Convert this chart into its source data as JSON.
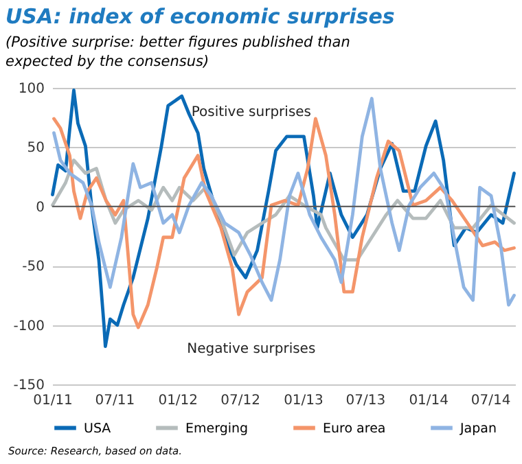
{
  "chart_data": {
    "type": "line",
    "title": "USA: index of economic surprises",
    "subtitle": "(Positive surprise: better figures published than expected by the consensus)",
    "xlim": [
      "2011-01-01",
      "2014-09-12"
    ],
    "xticks": [
      {
        "value": "2011-01-01",
        "label": "01/11"
      },
      {
        "value": "2011-07-01",
        "label": "07/11"
      },
      {
        "value": "2012-01-01",
        "label": "01/12"
      },
      {
        "value": "2012-07-01",
        "label": "07/12"
      },
      {
        "value": "2013-01-01",
        "label": "01/13"
      },
      {
        "value": "2013-07-01",
        "label": "07/13"
      },
      {
        "value": "2014-01-01",
        "label": "01/14"
      },
      {
        "value": "2014-07-01",
        "label": "07/14"
      }
    ],
    "ylim": [
      -150,
      100
    ],
    "yticks": [
      -150,
      -100,
      -50,
      0,
      50,
      100
    ],
    "grid": "y",
    "legend": "bottom",
    "line_style": "solid",
    "ref_lines": [
      {
        "axis": "y",
        "value": 0,
        "color": "#555555"
      }
    ],
    "series": [
      {
        "name": "USA",
        "color": "#0a6ab6",
        "x": [
          "2011-01-02",
          "2011-01-18",
          "2011-02-09",
          "2011-02-21",
          "2011-03-05",
          "2011-03-17",
          "2011-04-08",
          "2011-04-26",
          "2011-05-17",
          "2011-06-01",
          "2011-06-05",
          "2011-06-19",
          "2011-07-10",
          "2011-07-28",
          "2011-08-25",
          "2011-10-07",
          "2011-11-15",
          "2011-12-05",
          "2012-01-14",
          "2012-02-04",
          "2012-03-01",
          "2012-03-18",
          "2012-04-22",
          "2012-05-18",
          "2012-06-21",
          "2012-07-18",
          "2012-08-21",
          "2012-09-23",
          "2012-10-14",
          "2012-11-15",
          "2013-01-04",
          "2013-02-01",
          "2013-02-12",
          "2013-03-21",
          "2013-04-23",
          "2013-05-26",
          "2013-07-07",
          "2013-08-15",
          "2013-09-18",
          "2013-10-21",
          "2013-11-23",
          "2013-12-26",
          "2014-01-23",
          "2014-02-15",
          "2014-03-18",
          "2014-04-21",
          "2014-05-23",
          "2014-07-04",
          "2014-08-07",
          "2014-09-09"
        ],
        "values": [
          10,
          35,
          30,
          65,
          98,
          70,
          51,
          0,
          -45,
          -100,
          -118,
          -95,
          -100,
          -83,
          -60,
          -10,
          50,
          85,
          93,
          78,
          62,
          32,
          -3,
          -26,
          -49,
          -60,
          -37,
          13,
          47,
          59,
          59,
          9,
          -18,
          28,
          -7,
          -26,
          -7,
          32,
          53,
          13,
          13,
          51,
          72,
          39,
          -33,
          -18,
          -22,
          -7,
          -14,
          28
        ]
      },
      {
        "name": "Emerging",
        "color": "#b5bcbc",
        "x": [
          "2011-01-02",
          "2011-02-09",
          "2011-03-05",
          "2011-04-08",
          "2011-05-10",
          "2011-06-07",
          "2011-07-04",
          "2011-07-28",
          "2011-09-09",
          "2011-10-18",
          "2011-11-21",
          "2011-12-17",
          "2012-01-07",
          "2012-02-16",
          "2012-03-23",
          "2012-05-07",
          "2012-06-15",
          "2012-07-23",
          "2012-09-04",
          "2012-10-14",
          "2012-11-23",
          "2013-01-04",
          "2013-02-23",
          "2013-03-09",
          "2013-05-01",
          "2013-06-09",
          "2013-07-21",
          "2013-09-01",
          "2013-10-04",
          "2013-11-18",
          "2013-12-26",
          "2014-02-06",
          "2014-03-18",
          "2014-05-12",
          "2014-07-04",
          "2014-09-09"
        ],
        "values": [
          1,
          20,
          39,
          28,
          32,
          5,
          -14,
          -3,
          5,
          -3,
          16,
          5,
          16,
          5,
          16,
          -10,
          -41,
          -22,
          -14,
          -7,
          9,
          1,
          -7,
          -18,
          -45,
          -45,
          -26,
          -7,
          5,
          -10,
          -10,
          5,
          -18,
          -18,
          1,
          -14
        ]
      },
      {
        "name": "Euro area",
        "color": "#f4956a",
        "x": [
          "2011-01-06",
          "2011-01-25",
          "2011-02-21",
          "2011-03-05",
          "2011-03-24",
          "2011-04-14",
          "2011-05-10",
          "2011-06-07",
          "2011-07-04",
          "2011-07-28",
          "2011-08-25",
          "2011-09-09",
          "2011-10-07",
          "2011-11-02",
          "2011-11-21",
          "2011-12-17",
          "2012-01-21",
          "2012-03-01",
          "2012-03-23",
          "2012-05-07",
          "2012-06-09",
          "2012-06-28",
          "2012-07-23",
          "2012-09-04",
          "2012-10-01",
          "2012-11-09",
          "2012-12-18",
          "2013-01-15",
          "2013-02-07",
          "2013-03-09",
          "2013-04-04",
          "2013-05-01",
          "2013-05-26",
          "2013-06-23",
          "2013-08-04",
          "2013-09-07",
          "2013-10-09",
          "2013-11-18",
          "2013-12-26",
          "2014-02-06",
          "2014-03-12",
          "2014-04-26",
          "2014-06-09",
          "2014-07-15",
          "2014-08-12",
          "2014-09-09"
        ],
        "values": [
          74,
          66,
          43,
          13,
          -10,
          13,
          24,
          5,
          -7,
          5,
          -91,
          -102,
          -83,
          -52,
          -26,
          -26,
          24,
          43,
          13,
          -18,
          -52,
          -91,
          -72,
          -60,
          1,
          5,
          1,
          32,
          74,
          43,
          -7,
          -72,
          -72,
          -26,
          24,
          55,
          47,
          1,
          5,
          16,
          5,
          -14,
          -33,
          -30,
          -37,
          -35
        ]
      },
      {
        "name": "Japan",
        "color": "#8fb4e3",
        "x": [
          "2011-01-06",
          "2011-01-25",
          "2011-02-21",
          "2011-04-01",
          "2011-04-26",
          "2011-05-17",
          "2011-06-19",
          "2011-07-22",
          "2011-08-25",
          "2011-09-15",
          "2011-10-18",
          "2011-11-21",
          "2011-12-17",
          "2012-01-07",
          "2012-02-04",
          "2012-03-12",
          "2012-04-09",
          "2012-05-18",
          "2012-06-28",
          "2012-08-01",
          "2012-09-04",
          "2012-10-01",
          "2012-10-26",
          "2012-11-23",
          "2012-12-18",
          "2013-01-21",
          "2013-02-23",
          "2013-04-04",
          "2013-04-23",
          "2013-05-26",
          "2013-06-23",
          "2013-07-21",
          "2013-08-15",
          "2013-09-18",
          "2013-10-09",
          "2013-11-07",
          "2013-12-09",
          "2014-01-18",
          "2014-02-21",
          "2014-03-18",
          "2014-04-15",
          "2014-05-12",
          "2014-06-01",
          "2014-07-04",
          "2014-08-01",
          "2014-08-24",
          "2014-09-09"
        ],
        "values": [
          62,
          39,
          28,
          20,
          1,
          -30,
          -68,
          -26,
          36,
          16,
          20,
          -14,
          -7,
          -22,
          1,
          20,
          9,
          -14,
          -22,
          -41,
          -64,
          -79,
          -45,
          9,
          28,
          -7,
          -26,
          -45,
          -64,
          -7,
          59,
          91,
          32,
          -14,
          -37,
          1,
          16,
          28,
          13,
          -26,
          -68,
          -79,
          16,
          9,
          -33,
          -83,
          -75
        ]
      }
    ],
    "annotations": [
      "Positive surprises",
      "Negative surprises",
      "Source: Research, based on data."
    ]
  }
}
